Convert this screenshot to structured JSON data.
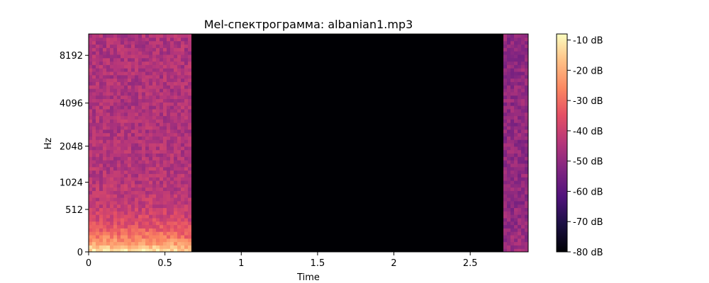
{
  "chart_data": {
    "type": "heatmap",
    "title": "Mel-спектрограмма: albanian1.mp3",
    "xlabel": "Time",
    "ylabel": "Hz",
    "xlim": [
      0,
      2.88
    ],
    "x_ticks": [
      {
        "value": 0,
        "label": "0"
      },
      {
        "value": 0.5,
        "label": "0.5"
      },
      {
        "value": 1,
        "label": "1"
      },
      {
        "value": 1.5,
        "label": "1.5"
      },
      {
        "value": 2,
        "label": "2"
      },
      {
        "value": 2.5,
        "label": "2.5"
      }
    ],
    "y_scale": "mel",
    "ylim_hz": [
      0,
      11025
    ],
    "y_ticks": [
      {
        "value": 0,
        "label": "0"
      },
      {
        "value": 512,
        "label": "512"
      },
      {
        "value": 1024,
        "label": "1024"
      },
      {
        "value": 2048,
        "label": "2048"
      },
      {
        "value": 4096,
        "label": "4096"
      },
      {
        "value": 8192,
        "label": "8192"
      }
    ],
    "colormap": "magma",
    "colorbar": {
      "range_db": [
        -80,
        -8
      ],
      "ticks": [
        {
          "value": -10,
          "label": "-10 dB"
        },
        {
          "value": -20,
          "label": "-20 dB"
        },
        {
          "value": -30,
          "label": "-30 dB"
        },
        {
          "value": -40,
          "label": "-40 dB"
        },
        {
          "value": -50,
          "label": "-50 dB"
        },
        {
          "value": -60,
          "label": "-60 dB"
        },
        {
          "value": -70,
          "label": "-70 dB"
        },
        {
          "value": -80,
          "label": "-80 dB"
        }
      ]
    },
    "segments": [
      {
        "t_start": 0,
        "t_end": 0.68,
        "content": "speech",
        "low_band_db": -12,
        "high_band_db": -45
      },
      {
        "t_start": 0.68,
        "t_end": 2.72,
        "content": "silence",
        "db": -80
      },
      {
        "t_start": 2.72,
        "t_end": 2.88,
        "content": "speech",
        "low_band_db": -48,
        "high_band_db": -50
      }
    ]
  }
}
